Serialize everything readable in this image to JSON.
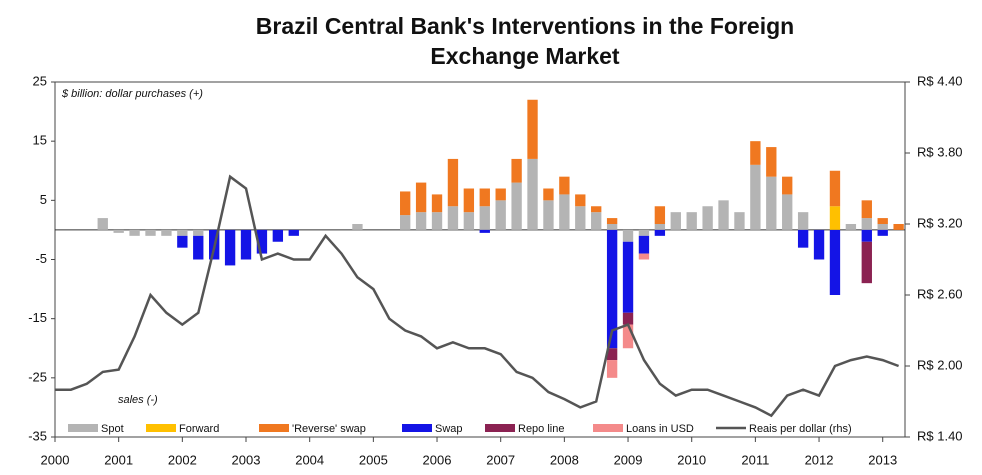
{
  "chart_data": {
    "type": "bar",
    "title": [
      "Brazil Central Bank's Interventions in the Foreign",
      "Exchange Market"
    ],
    "annotations": [
      "$ billion: dollar purchases (+)",
      "sales (-)"
    ],
    "x": [
      2000,
      2000.25,
      2000.5,
      2000.75,
      2001,
      2001.25,
      2001.5,
      2001.75,
      2002,
      2002.25,
      2002.5,
      2002.75,
      2003,
      2003.25,
      2003.5,
      2003.75,
      2004,
      2004.25,
      2004.5,
      2004.75,
      2005,
      2005.25,
      2005.5,
      2005.75,
      2006,
      2006.25,
      2006.5,
      2006.75,
      2007,
      2007.25,
      2007.5,
      2007.75,
      2008,
      2008.25,
      2008.5,
      2008.75,
      2009,
      2009.25,
      2009.5,
      2009.75,
      2010,
      2010.25,
      2010.5,
      2010.75,
      2011,
      2011.25,
      2011.5,
      2011.75,
      2012,
      2012.25,
      2012.5,
      2012.75,
      2013,
      2013.25
    ],
    "series": [
      {
        "name": "Spot",
        "color": "#b4b4b4",
        "values": [
          0,
          0,
          0,
          2,
          -0.5,
          -1,
          -1,
          -1,
          -1,
          -1,
          0,
          0,
          0,
          0,
          0,
          0,
          0,
          0,
          0,
          1,
          0,
          0,
          2.5,
          3,
          3,
          4,
          3,
          4,
          5,
          8,
          12,
          5,
          6,
          4,
          3,
          1,
          -2,
          -1,
          1,
          3,
          3,
          4,
          5,
          3,
          11,
          9,
          6,
          3,
          0,
          0,
          1,
          2,
          1,
          0
        ]
      },
      {
        "name": "Forward",
        "color": "#ffc000",
        "values": [
          0,
          0,
          0,
          0,
          0,
          0,
          0,
          0,
          0,
          0,
          0,
          0,
          0,
          0,
          0,
          0,
          0,
          0,
          0,
          0,
          0,
          0,
          0,
          0,
          0,
          0,
          0,
          0,
          0,
          0,
          0,
          0,
          0,
          0,
          0,
          0,
          0,
          0,
          0,
          0,
          0,
          0,
          0,
          0,
          0,
          0,
          0,
          0,
          0,
          4,
          0,
          0,
          0,
          0
        ]
      },
      {
        "name": "'Reverse' swap",
        "color": "#f07820",
        "values": [
          0,
          0,
          0,
          0,
          0,
          0,
          0,
          0,
          0,
          0,
          0,
          0,
          0,
          0,
          0,
          0,
          0,
          0,
          0,
          0,
          0,
          0,
          4,
          5,
          3,
          8,
          4,
          3,
          2,
          4,
          10,
          2,
          3,
          2,
          1,
          1,
          0,
          0,
          3,
          0,
          0,
          0,
          0,
          0,
          4,
          5,
          3,
          0,
          0,
          6,
          0,
          3,
          1,
          1
        ]
      },
      {
        "name": "Swap",
        "color": "#1414e6",
        "values": [
          0,
          0,
          0,
          0,
          0,
          0,
          0,
          0,
          -2,
          -4,
          -5,
          -6,
          -5,
          -4,
          -2,
          -1,
          0,
          0,
          0,
          0,
          0,
          0,
          0,
          0,
          0,
          0,
          0,
          -0.5,
          0,
          0,
          0,
          0,
          0,
          0,
          0,
          -20,
          -12,
          -3,
          -1,
          0,
          0,
          0,
          0,
          0,
          0,
          0,
          0,
          -3,
          -5,
          -11,
          0,
          -2,
          -1,
          0
        ]
      },
      {
        "name": "Repo line",
        "color": "#8b2252",
        "values": [
          0,
          0,
          0,
          0,
          0,
          0,
          0,
          0,
          0,
          0,
          0,
          0,
          0,
          0,
          0,
          0,
          0,
          0,
          0,
          0,
          0,
          0,
          0,
          0,
          0,
          0,
          0,
          0,
          0,
          0,
          0,
          0,
          0,
          0,
          0,
          -2,
          -2,
          0,
          0,
          0,
          0,
          0,
          0,
          0,
          0,
          0,
          0,
          0,
          0,
          0,
          0,
          -7,
          0,
          0
        ]
      },
      {
        "name": "Loans in USD",
        "color": "#f48a8a",
        "values": [
          0,
          0,
          0,
          0,
          0,
          0,
          0,
          0,
          0,
          0,
          0,
          0,
          0,
          0,
          0,
          0,
          0,
          0,
          0,
          0,
          0,
          0,
          0,
          0,
          0,
          0,
          0,
          0,
          0,
          0,
          0,
          0,
          0,
          0,
          0,
          -3,
          -4,
          -1,
          0,
          0,
          0,
          0,
          0,
          0,
          0,
          0,
          0,
          0,
          0,
          0,
          0,
          0,
          0,
          0
        ]
      },
      {
        "name": "Reais per dollar (rhs)",
        "color": "#555555",
        "axis": "y2",
        "type": "line",
        "values": [
          1.8,
          1.8,
          1.85,
          1.95,
          1.97,
          2.25,
          2.6,
          2.45,
          2.35,
          2.45,
          3.0,
          3.6,
          3.5,
          2.9,
          2.95,
          2.9,
          2.9,
          3.1,
          2.95,
          2.75,
          2.65,
          2.4,
          2.3,
          2.25,
          2.15,
          2.2,
          2.15,
          2.15,
          2.1,
          1.95,
          1.9,
          1.78,
          1.72,
          1.65,
          1.7,
          2.3,
          2.35,
          2.05,
          1.85,
          1.75,
          1.8,
          1.8,
          1.75,
          1.7,
          1.65,
          1.58,
          1.75,
          1.8,
          1.75,
          2.0,
          2.05,
          2.08,
          2.05,
          2.0
        ]
      }
    ],
    "xlim": [
      2000,
      2013.35
    ],
    "xticks": [
      2000,
      2001,
      2002,
      2003,
      2004,
      2005,
      2006,
      2007,
      2008,
      2009,
      2010,
      2011,
      2012,
      2013
    ],
    "ylim": [
      -35,
      25
    ],
    "yticks": [
      -35,
      -25,
      -15,
      -5,
      5,
      15,
      25
    ],
    "y2lim": [
      1.4,
      4.4
    ],
    "y2ticks": [
      {
        "value": 1.4,
        "label": "R$ 1.40"
      },
      {
        "value": 2.0,
        "label": "R$ 2.00"
      },
      {
        "value": 2.6,
        "label": "R$ 2.60"
      },
      {
        "value": 3.2,
        "label": "R$ 3.20"
      },
      {
        "value": 3.8,
        "label": "R$ 3.80"
      },
      {
        "value": 4.4,
        "label": "R$ 4.40"
      }
    ]
  }
}
